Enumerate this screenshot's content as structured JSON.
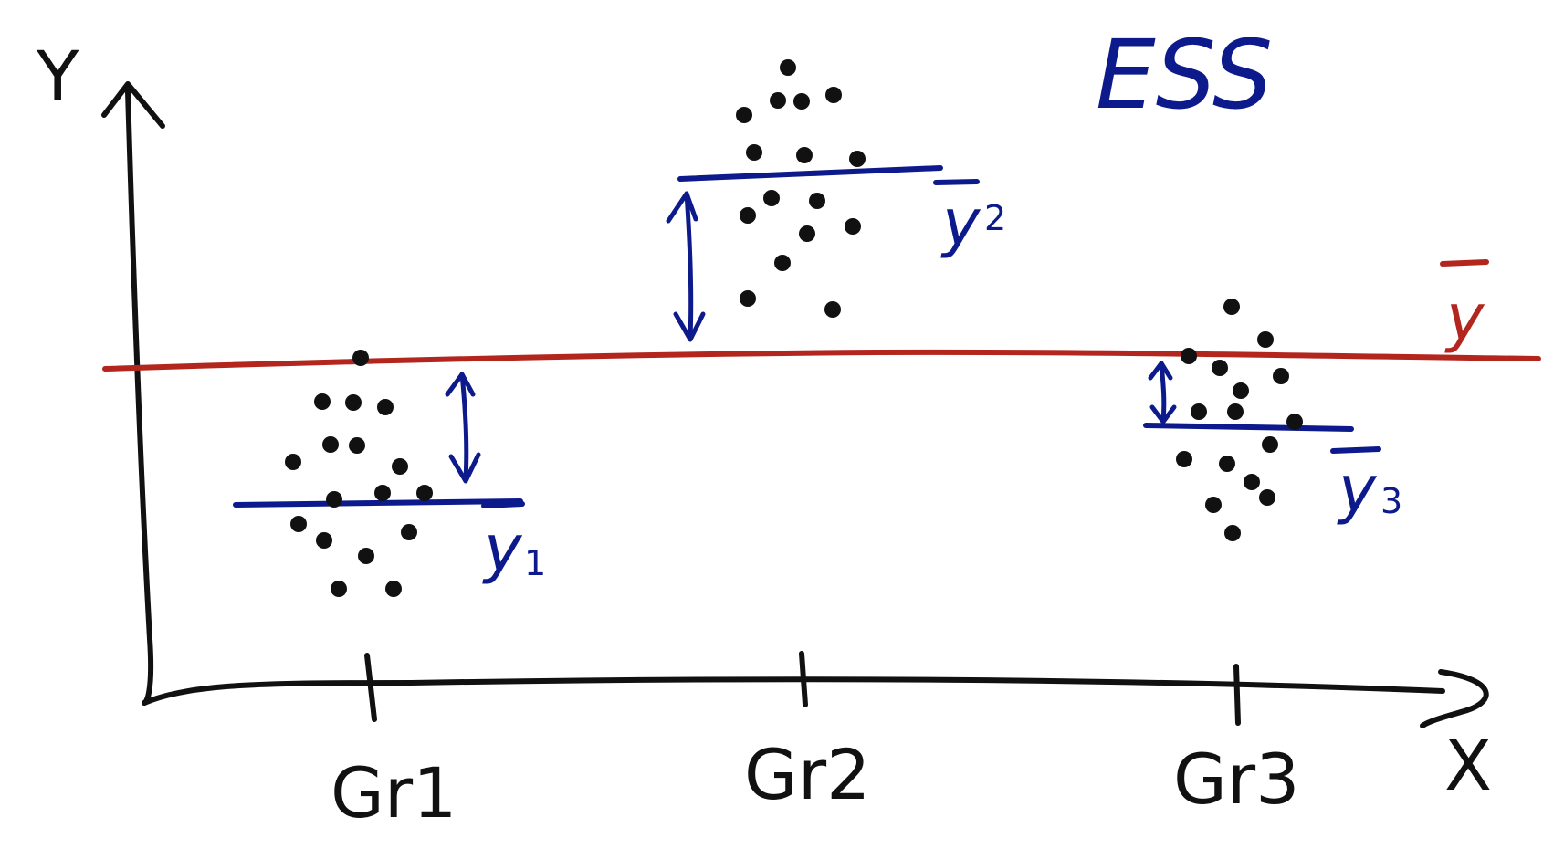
{
  "title": "ESS",
  "axes": {
    "y_label": "Y",
    "x_label": "X"
  },
  "grand_mean": {
    "symbol": "y",
    "color": "#b3261e"
  },
  "groups": [
    {
      "name": "Gr1",
      "mean_symbol": "y",
      "mean_subscript": "1"
    },
    {
      "name": "Gr2",
      "mean_symbol": "y",
      "mean_subscript": "2"
    },
    {
      "name": "Gr3",
      "mean_symbol": "y",
      "mean_subscript": "3"
    }
  ],
  "colors": {
    "ink": "#111111",
    "mean": "#0d1a8c",
    "grand_mean": "#b3261e"
  }
}
